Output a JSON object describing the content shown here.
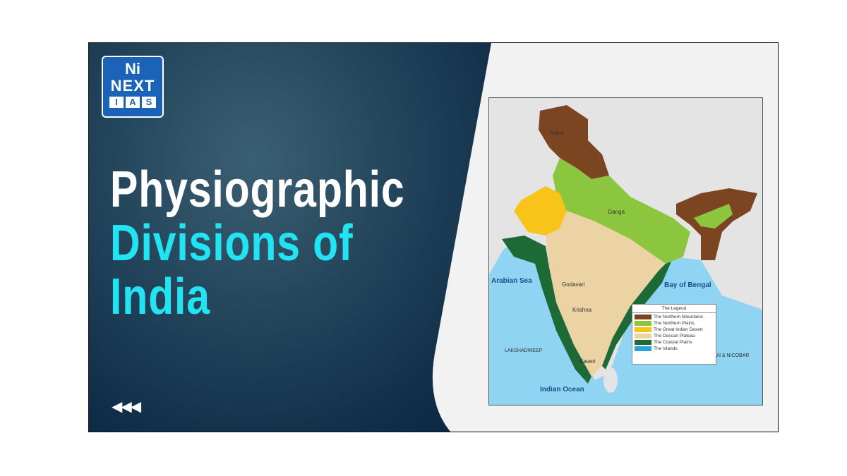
{
  "logo": {
    "line1": "Ni",
    "line2": "NEXT",
    "line3": [
      "I",
      "A",
      "S"
    ]
  },
  "title": {
    "line1": "Physiographic",
    "line2": "Divisions of",
    "line3": "India"
  },
  "nav": {
    "arrows": "◀◀◀"
  },
  "colors": {
    "title_white": "#ffffff",
    "title_cyan": "#22e3f2",
    "brand_blue": "#1a63b8"
  },
  "map": {
    "labels": {
      "indus": "Indus",
      "ganga": "Ganga",
      "godavari": "Godavari",
      "krishna": "Krishna",
      "kaveri": "Kaveri",
      "lakshadweep": "LAKSHADWEEP",
      "andaman": "ANDAMAN & NICOBAR"
    },
    "seas": {
      "arabian": "Arabian Sea",
      "bengal": "Bay of Bengal",
      "indian": "Indian Ocean"
    },
    "legend": {
      "title": "The Legend",
      "items": [
        {
          "label": "The Northern Mountains",
          "color": "#7a4520"
        },
        {
          "label": "The Northern Plains",
          "color": "#8cc63f"
        },
        {
          "label": "The Great Indian Desert",
          "color": "#f8c41a"
        },
        {
          "label": "The Deccan Plateau",
          "color": "#ecd3a3"
        },
        {
          "label": "The Coastal Plains",
          "color": "#1d6a36"
        },
        {
          "label": "The Islands",
          "color": "#2aa3dc"
        }
      ]
    }
  }
}
